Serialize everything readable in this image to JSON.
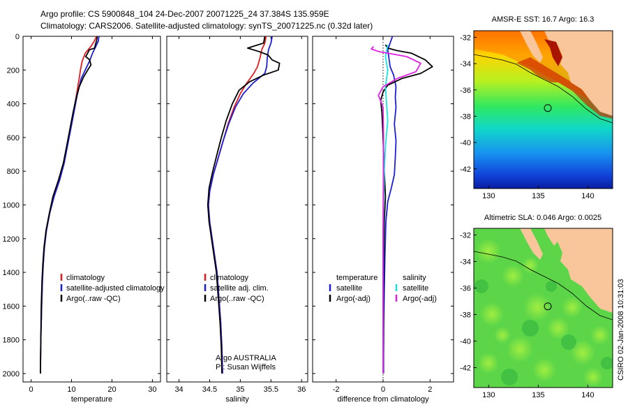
{
  "header": {
    "line1": "Argo profile: CS 5900848_104 24-Dec-2007 20071225_24 37.384S 135.959E",
    "line2": "Climatology: CARS2006. Satellite-adjusted climatology: synTS_20071225.nc (0.32d later)"
  },
  "credit": "CSIRO 02-Jan-2008 10:31:03",
  "colors": {
    "climatology": "#e41a1c",
    "satellite": "#1c1cd8",
    "argo": "#000000",
    "cyan": "#18e4e4",
    "magenta": "#e020e0",
    "land": "#f9c59a"
  },
  "chart_data": [
    {
      "type": "line",
      "xlabel": "temperature",
      "ylabel": "",
      "xlim": [
        -2,
        32
      ],
      "ylim": [
        2050,
        0
      ],
      "xticks": [
        0,
        10,
        20,
        30
      ],
      "yticks": [
        0,
        200,
        400,
        600,
        800,
        1000,
        1200,
        1400,
        1600,
        1800,
        2000
      ],
      "legend": [
        "climatology",
        "satellite-adjusted climatology",
        "Argo(..raw -QC)"
      ],
      "legend_placement": "lower-right",
      "series": [
        {
          "name": "climatology",
          "color": "climatology",
          "points": [
            [
              16.2,
              0
            ],
            [
              15.6,
              30
            ],
            [
              14.8,
              60
            ],
            [
              13.4,
              100
            ],
            [
              12.6,
              150
            ],
            [
              12.2,
              200
            ],
            [
              11.9,
              250
            ],
            [
              11.2,
              350
            ],
            [
              10.5,
              450
            ],
            [
              9.7,
              550
            ],
            [
              8.9,
              650
            ],
            [
              8.1,
              750
            ],
            [
              7.0,
              850
            ],
            [
              5.6,
              950
            ],
            [
              4.6,
              1050
            ],
            [
              3.8,
              1150
            ],
            [
              3.3,
              1250
            ],
            [
              3.0,
              1350
            ],
            [
              2.8,
              1450
            ],
            [
              2.6,
              1600
            ],
            [
              2.4,
              1800
            ],
            [
              2.3,
              2000
            ]
          ]
        },
        {
          "name": "satellite-adjusted climatology",
          "color": "satellite",
          "points": [
            [
              16.8,
              0
            ],
            [
              16.6,
              30
            ],
            [
              16.0,
              60
            ],
            [
              15.2,
              100
            ],
            [
              14.4,
              150
            ],
            [
              13.4,
              200
            ],
            [
              12.4,
              250
            ],
            [
              11.4,
              350
            ],
            [
              10.6,
              450
            ],
            [
              9.8,
              550
            ],
            [
              9.0,
              650
            ],
            [
              8.2,
              750
            ],
            [
              7.1,
              850
            ],
            [
              5.7,
              950
            ],
            [
              4.6,
              1050
            ],
            [
              3.8,
              1150
            ],
            [
              3.3,
              1250
            ],
            [
              3.0,
              1350
            ],
            [
              2.8,
              1450
            ],
            [
              2.6,
              1600
            ],
            [
              2.4,
              1800
            ],
            [
              2.3,
              2000
            ]
          ]
        },
        {
          "name": "Argo(..raw -QC)",
          "color": "argo",
          "points": [
            [
              16.4,
              0
            ],
            [
              16.2,
              25
            ],
            [
              15.9,
              50
            ],
            [
              15.7,
              70
            ],
            [
              14.4,
              80
            ],
            [
              14.0,
              100
            ],
            [
              13.5,
              120
            ],
            [
              14.5,
              140
            ],
            [
              14.8,
              170
            ],
            [
              14.0,
              200
            ],
            [
              13.0,
              240
            ],
            [
              11.9,
              300
            ],
            [
              11.2,
              360
            ],
            [
              10.4,
              450
            ],
            [
              9.6,
              550
            ],
            [
              8.8,
              650
            ],
            [
              8.0,
              750
            ],
            [
              6.8,
              850
            ],
            [
              5.4,
              950
            ],
            [
              4.5,
              1050
            ],
            [
              3.7,
              1150
            ],
            [
              3.2,
              1250
            ],
            [
              2.9,
              1350
            ],
            [
              2.7,
              1450
            ],
            [
              2.5,
              1600
            ],
            [
              2.4,
              1800
            ],
            [
              2.3,
              2000
            ]
          ]
        }
      ]
    },
    {
      "type": "line",
      "xlabel": "salinity",
      "ylabel": "",
      "xlim": [
        33.8,
        36.1
      ],
      "ylim": [
        2050,
        0
      ],
      "xticks": [
        34,
        34.5,
        35,
        35.5,
        36
      ],
      "legend": [
        "climatology",
        "satellite adj. clim.",
        "Argo(..raw -QC)"
      ],
      "legend_placement": "lower-right",
      "annotation": [
        "Argo AUSTRALIA",
        "PI: Susan Wijffels"
      ],
      "series": [
        {
          "name": "climatology",
          "color": "climatology",
          "points": [
            [
              35.42,
              0
            ],
            [
              35.4,
              40
            ],
            [
              35.35,
              80
            ],
            [
              35.32,
              130
            ],
            [
              35.28,
              180
            ],
            [
              35.22,
              220
            ],
            [
              35.1,
              280
            ],
            [
              35.0,
              340
            ],
            [
              34.9,
              420
            ],
            [
              34.8,
              520
            ],
            [
              34.72,
              620
            ],
            [
              34.64,
              720
            ],
            [
              34.56,
              820
            ],
            [
              34.5,
              920
            ],
            [
              34.48,
              1000
            ],
            [
              34.5,
              1100
            ],
            [
              34.54,
              1200
            ],
            [
              34.58,
              1300
            ],
            [
              34.62,
              1400
            ],
            [
              34.65,
              1550
            ],
            [
              34.68,
              1700
            ],
            [
              34.7,
              1850
            ],
            [
              34.71,
              2000
            ]
          ]
        },
        {
          "name": "satellite adj. clim.",
          "color": "satellite",
          "points": [
            [
              35.52,
              0
            ],
            [
              35.5,
              40
            ],
            [
              35.46,
              80
            ],
            [
              35.44,
              130
            ],
            [
              35.43,
              180
            ],
            [
              35.4,
              220
            ],
            [
              35.2,
              280
            ],
            [
              35.05,
              340
            ],
            [
              34.92,
              420
            ],
            [
              34.81,
              520
            ],
            [
              34.72,
              620
            ],
            [
              34.64,
              720
            ],
            [
              34.56,
              820
            ],
            [
              34.5,
              920
            ],
            [
              34.48,
              1000
            ],
            [
              34.5,
              1100
            ],
            [
              34.54,
              1200
            ],
            [
              34.58,
              1300
            ],
            [
              34.62,
              1400
            ],
            [
              34.65,
              1550
            ],
            [
              34.68,
              1700
            ],
            [
              34.7,
              1850
            ],
            [
              34.71,
              2000
            ]
          ]
        },
        {
          "name": "Argo(..raw -QC)",
          "color": "argo",
          "points": [
            [
              35.4,
              0
            ],
            [
              35.38,
              40
            ],
            [
              35.12,
              70
            ],
            [
              35.3,
              90
            ],
            [
              35.45,
              110
            ],
            [
              35.52,
              140
            ],
            [
              35.64,
              160
            ],
            [
              35.62,
              200
            ],
            [
              35.38,
              230
            ],
            [
              35.15,
              270
            ],
            [
              34.98,
              320
            ],
            [
              34.87,
              400
            ],
            [
              34.77,
              500
            ],
            [
              34.69,
              600
            ],
            [
              34.62,
              700
            ],
            [
              34.55,
              800
            ],
            [
              34.49,
              900
            ],
            [
              34.47,
              1000
            ],
            [
              34.49,
              1100
            ],
            [
              34.53,
              1200
            ],
            [
              34.57,
              1300
            ],
            [
              34.61,
              1400
            ],
            [
              34.64,
              1550
            ],
            [
              34.67,
              1700
            ],
            [
              34.69,
              1850
            ],
            [
              34.7,
              2000
            ]
          ]
        }
      ]
    },
    {
      "type": "line",
      "xlabel": "difference from climatology",
      "ylabel": "",
      "xlim": [
        -3,
        3
      ],
      "ylim": [
        2050,
        0
      ],
      "xticks": [
        -2,
        0,
        2
      ],
      "legend_groups": [
        {
          "title": "temperature",
          "items": [
            "satellite",
            "Argo(-adj)"
          ]
        },
        {
          "title": "salinity",
          "items": [
            "satellite",
            "Argo(-adj)"
          ]
        }
      ],
      "legend_placement": "lower-middle",
      "series": [
        {
          "name": "temperature satellite",
          "color": "satellite",
          "points": [
            [
              0.4,
              0
            ],
            [
              0.3,
              40
            ],
            [
              0.2,
              80
            ],
            [
              0.25,
              130
            ],
            [
              0.3,
              180
            ],
            [
              0.45,
              230
            ],
            [
              0.55,
              300
            ],
            [
              0.52,
              360
            ],
            [
              0.55,
              420
            ],
            [
              0.48,
              520
            ],
            [
              0.55,
              620
            ],
            [
              0.52,
              720
            ],
            [
              0.48,
              820
            ],
            [
              0.35,
              900
            ],
            [
              0.2,
              980
            ],
            [
              0.12,
              1100
            ],
            [
              0.08,
              1300
            ],
            [
              0.05,
              1500
            ],
            [
              0.03,
              1700
            ],
            [
              0.02,
              1900
            ],
            [
              0.02,
              2000
            ]
          ]
        },
        {
          "name": "temperature Argo(-adj)",
          "color": "argo",
          "points": [
            [
              0.1,
              50
            ],
            [
              0.2,
              70
            ],
            [
              0.6,
              85
            ],
            [
              1.2,
              100
            ],
            [
              1.8,
              140
            ],
            [
              2.1,
              180
            ],
            [
              1.6,
              220
            ],
            [
              0.8,
              250
            ],
            [
              0.2,
              290
            ],
            [
              0.0,
              330
            ],
            [
              -0.1,
              380
            ],
            [
              -0.05,
              450
            ],
            [
              0.0,
              600
            ],
            [
              0.05,
              800
            ],
            [
              0.1,
              950
            ],
            [
              0.05,
              1100
            ],
            [
              0.03,
              1300
            ],
            [
              0.02,
              1500
            ],
            [
              0.01,
              1700
            ],
            [
              0.0,
              2000
            ]
          ]
        },
        {
          "name": "salinity satellite",
          "color": "cyan",
          "points": [
            [
              0.2,
              50
            ],
            [
              0.1,
              120
            ],
            [
              0.2,
              200
            ],
            [
              0.1,
              300
            ],
            [
              0.15,
              400
            ],
            [
              0.2,
              500
            ],
            [
              0.1,
              650
            ],
            [
              0.05,
              800
            ],
            [
              0.02,
              1000
            ],
            [
              0.0,
              1200
            ],
            [
              0.0,
              1500
            ],
            [
              0.0,
              2000
            ]
          ]
        },
        {
          "name": "salinity Argo(-adj)",
          "color": "magenta",
          "points": [
            [
              -0.4,
              60
            ],
            [
              -0.5,
              75
            ],
            [
              -0.2,
              90
            ],
            [
              1.0,
              120
            ],
            [
              1.6,
              160
            ],
            [
              1.4,
              210
            ],
            [
              0.6,
              250
            ],
            [
              0.0,
              300
            ],
            [
              -0.2,
              350
            ],
            [
              0.0,
              420
            ],
            [
              0.02,
              600
            ],
            [
              0.01,
              900
            ],
            [
              0.0,
              1200
            ],
            [
              0.0,
              2000
            ]
          ]
        }
      ]
    },
    {
      "type": "heatmap",
      "title": "AMSR-E SST: 16.7 Argo: 16.3",
      "xlim": [
        128.5,
        142.5
      ],
      "ylim": [
        -43.5,
        -31.5
      ],
      "xticks": [
        130,
        135,
        140
      ],
      "yticks": [
        -32,
        -34,
        -36,
        -38,
        -40,
        -42
      ],
      "marker": {
        "lon": 135.96,
        "lat": -37.38
      }
    },
    {
      "type": "heatmap",
      "title": "Altimetric SLA: 0.046 Argo: 0.0025",
      "xlim": [
        128.5,
        142.5
      ],
      "ylim": [
        -43.5,
        -31.5
      ],
      "xticks": [
        130,
        135,
        140
      ],
      "yticks": [
        -32,
        -34,
        -36,
        -38,
        -40,
        -42
      ],
      "marker": {
        "lon": 135.96,
        "lat": -37.38
      }
    }
  ]
}
